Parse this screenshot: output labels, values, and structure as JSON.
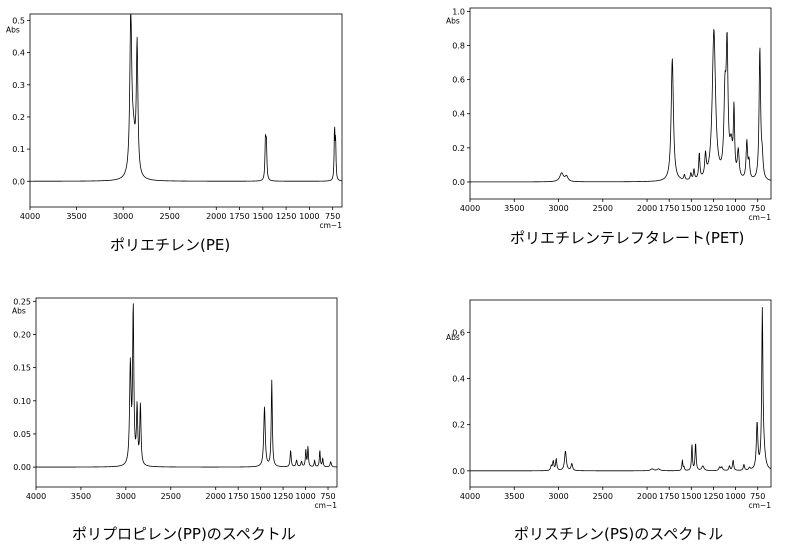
{
  "chart_data": [
    {
      "type": "line",
      "title": "ポリエチレン(PE)",
      "ylabel": "Abs",
      "xlabel": "cm−1",
      "xlim": [
        4000,
        650
      ],
      "ylim": [
        -0.08,
        0.52
      ],
      "xticks": [
        4000,
        3500,
        3000,
        2500,
        2000,
        1750,
        1500,
        1250,
        1000,
        750
      ],
      "yticks": [
        0.0,
        0.1,
        0.2,
        0.3,
        0.4,
        0.5
      ],
      "yticklabels": [
        "0.0",
        "0.1",
        "0.2",
        "0.3",
        "0.4",
        "0.5"
      ],
      "baseline": 0.0,
      "peaks": [
        {
          "x": 2918,
          "y": 0.48,
          "w": 12
        },
        {
          "x": 2850,
          "y": 0.4,
          "w": 10
        },
        {
          "x": 2890,
          "y": 0.12,
          "w": 25
        },
        {
          "x": 1472,
          "y": 0.12,
          "w": 6
        },
        {
          "x": 1462,
          "y": 0.11,
          "w": 6
        },
        {
          "x": 730,
          "y": 0.16,
          "w": 5
        },
        {
          "x": 719,
          "y": 0.12,
          "w": 5
        }
      ]
    },
    {
      "type": "line",
      "title": "ポリエチレンテレフタレート(PET)",
      "ylabel": "Abs",
      "xlabel": "cm−1",
      "xlim": [
        4000,
        600
      ],
      "ylim": [
        -0.1,
        1.02
      ],
      "xticks": [
        4000,
        3500,
        3000,
        2500,
        2000,
        1750,
        1500,
        1250,
        1000,
        750
      ],
      "yticks": [
        0.0,
        0.2,
        0.4,
        0.6,
        0.8,
        1.0
      ],
      "yticklabels": [
        "0.0",
        "0.2",
        "0.4",
        "0.6",
        "0.8",
        "1.0"
      ],
      "baseline": 0.0,
      "peaks": [
        {
          "x": 2965,
          "y": 0.05,
          "w": 25
        },
        {
          "x": 2910,
          "y": 0.03,
          "w": 20
        },
        {
          "x": 1715,
          "y": 0.72,
          "w": 15
        },
        {
          "x": 1578,
          "y": 0.03,
          "w": 8
        },
        {
          "x": 1505,
          "y": 0.04,
          "w": 8
        },
        {
          "x": 1470,
          "y": 0.06,
          "w": 8
        },
        {
          "x": 1410,
          "y": 0.15,
          "w": 8
        },
        {
          "x": 1340,
          "y": 0.13,
          "w": 10
        },
        {
          "x": 1245,
          "y": 0.88,
          "w": 22
        },
        {
          "x": 1120,
          "y": 0.45,
          "w": 14
        },
        {
          "x": 1096,
          "y": 0.72,
          "w": 12
        },
        {
          "x": 1018,
          "y": 0.38,
          "w": 8
        },
        {
          "x": 970,
          "y": 0.16,
          "w": 12
        },
        {
          "x": 873,
          "y": 0.22,
          "w": 10
        },
        {
          "x": 848,
          "y": 0.1,
          "w": 10
        },
        {
          "x": 726,
          "y": 0.77,
          "w": 10
        },
        {
          "x": 700,
          "y": 0.12,
          "w": 12
        },
        {
          "x": 1050,
          "y": 0.18,
          "w": 20
        }
      ]
    },
    {
      "type": "line",
      "title": "ポリプロピレン(PP)のスペクトル",
      "ylabel": "Abs",
      "xlabel": "cm−1",
      "xlim": [
        4000,
        650
      ],
      "ylim": [
        -0.03,
        0.255
      ],
      "xticks": [
        4000,
        3500,
        3000,
        2500,
        2000,
        1750,
        1500,
        1250,
        1000,
        750
      ],
      "yticks": [
        0.0,
        0.05,
        0.1,
        0.15,
        0.2,
        0.25
      ],
      "yticklabels": [
        "0.00",
        "0.05",
        "0.10",
        "0.15",
        "0.20",
        "0.25"
      ],
      "baseline": 0.0,
      "peaks": [
        {
          "x": 2950,
          "y": 0.15,
          "w": 10
        },
        {
          "x": 2918,
          "y": 0.235,
          "w": 8
        },
        {
          "x": 2875,
          "y": 0.085,
          "w": 8
        },
        {
          "x": 2838,
          "y": 0.09,
          "w": 8
        },
        {
          "x": 1457,
          "y": 0.09,
          "w": 10
        },
        {
          "x": 1376,
          "y": 0.13,
          "w": 7
        },
        {
          "x": 1166,
          "y": 0.025,
          "w": 7
        },
        {
          "x": 1100,
          "y": 0.01,
          "w": 8
        },
        {
          "x": 1045,
          "y": 0.008,
          "w": 8
        },
        {
          "x": 997,
          "y": 0.025,
          "w": 6
        },
        {
          "x": 973,
          "y": 0.03,
          "w": 6
        },
        {
          "x": 899,
          "y": 0.01,
          "w": 6
        },
        {
          "x": 841,
          "y": 0.025,
          "w": 6
        },
        {
          "x": 809,
          "y": 0.013,
          "w": 6
        },
        {
          "x": 720,
          "y": 0.008,
          "w": 8
        }
      ]
    },
    {
      "type": "line",
      "title": "ポリスチレン(PS)のスペクトル",
      "ylabel": "Abs",
      "xlabel": "cm−1",
      "xlim": [
        4000,
        600
      ],
      "ylim": [
        -0.07,
        0.74
      ],
      "xticks": [
        4000,
        3500,
        3000,
        2500,
        2000,
        1750,
        1500,
        1250,
        1000,
        750
      ],
      "yticks": [
        0.0,
        0.2,
        0.4,
        0.6
      ],
      "yticklabels": [
        "0.0",
        "0.2",
        "0.4",
        "0.6"
      ],
      "baseline": 0.0,
      "peaks": [
        {
          "x": 3082,
          "y": 0.02,
          "w": 8
        },
        {
          "x": 3060,
          "y": 0.04,
          "w": 8
        },
        {
          "x": 3026,
          "y": 0.05,
          "w": 8
        },
        {
          "x": 2922,
          "y": 0.085,
          "w": 12
        },
        {
          "x": 2850,
          "y": 0.03,
          "w": 10
        },
        {
          "x": 1943,
          "y": 0.008,
          "w": 20
        },
        {
          "x": 1870,
          "y": 0.008,
          "w": 20
        },
        {
          "x": 1601,
          "y": 0.045,
          "w": 6
        },
        {
          "x": 1583,
          "y": 0.015,
          "w": 6
        },
        {
          "x": 1493,
          "y": 0.115,
          "w": 6
        },
        {
          "x": 1452,
          "y": 0.12,
          "w": 7
        },
        {
          "x": 1370,
          "y": 0.02,
          "w": 15
        },
        {
          "x": 1180,
          "y": 0.015,
          "w": 10
        },
        {
          "x": 1155,
          "y": 0.015,
          "w": 10
        },
        {
          "x": 1069,
          "y": 0.02,
          "w": 8
        },
        {
          "x": 1028,
          "y": 0.045,
          "w": 8
        },
        {
          "x": 906,
          "y": 0.025,
          "w": 8
        },
        {
          "x": 842,
          "y": 0.01,
          "w": 10
        },
        {
          "x": 757,
          "y": 0.2,
          "w": 10
        },
        {
          "x": 698,
          "y": 0.67,
          "w": 8
        },
        {
          "x": 680,
          "y": 0.06,
          "w": 20
        }
      ]
    }
  ]
}
